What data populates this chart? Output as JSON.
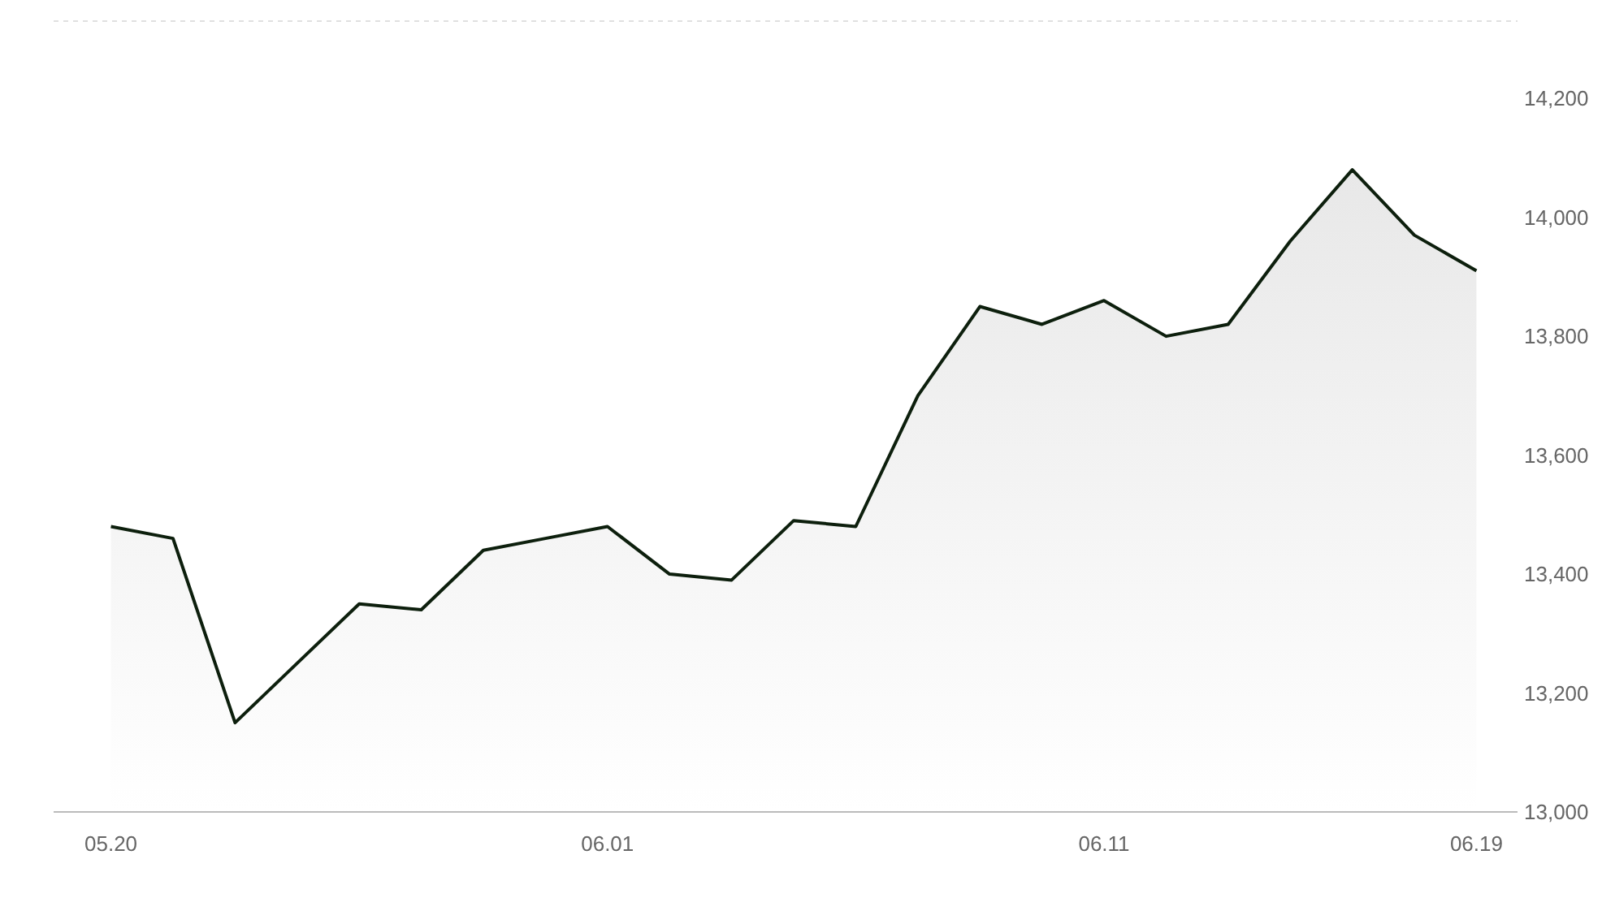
{
  "chart_data": {
    "type": "area",
    "categories": [
      "05.20",
      null,
      null,
      null,
      null,
      null,
      null,
      null,
      "06.01",
      null,
      null,
      null,
      null,
      null,
      null,
      null,
      "06.11",
      null,
      null,
      null,
      null,
      null,
      "06.19"
    ],
    "series": [
      {
        "color": "#0d1f0d",
        "values": [
          13480,
          13460,
          13150,
          13250,
          13350,
          13340,
          13440,
          13460,
          13480,
          13400,
          13390,
          13490,
          13480,
          13700,
          13850,
          13820,
          13860,
          13800,
          13820,
          13960,
          14080,
          13970,
          13910
        ]
      }
    ],
    "ylim": [
      13000,
      14330
    ],
    "yticks": [
      {
        "value": 13000,
        "label": "13,000"
      },
      {
        "value": 13200,
        "label": "13,200"
      },
      {
        "value": 13400,
        "label": "13,400"
      },
      {
        "value": 13600,
        "label": "13,600"
      },
      {
        "value": 13800,
        "label": "13,800"
      },
      {
        "value": 14000,
        "label": "14,000"
      },
      {
        "value": 14200,
        "label": "14,200"
      }
    ],
    "grid": false,
    "marker": "none",
    "line_style": "solid"
  }
}
